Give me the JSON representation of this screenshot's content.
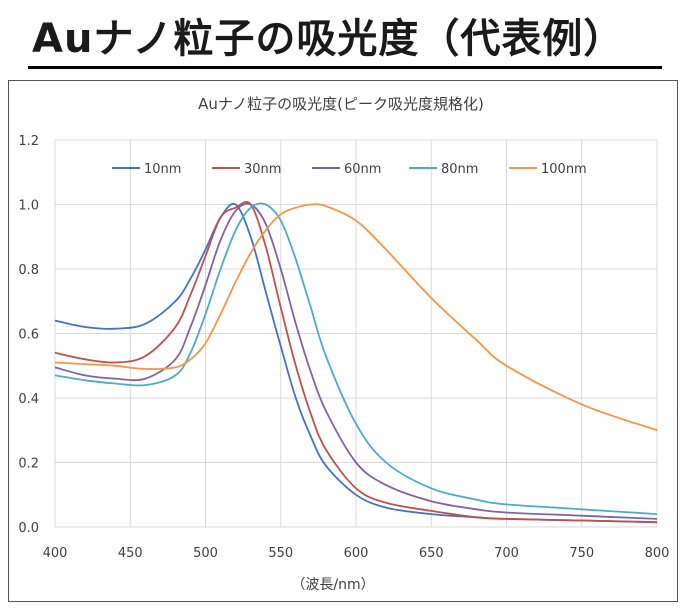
{
  "slide": {
    "title": "Auナノ粒子の吸光度（代表例）"
  },
  "chart_data": {
    "type": "line",
    "title": "Auナノ粒子の吸光度(ピーク吸光度規格化)",
    "xlabel": "（波長/nm）",
    "ylabel": "",
    "xlim": [
      400,
      800
    ],
    "ylim": [
      0,
      1.2
    ],
    "xticks": [
      "400",
      "450",
      "500",
      "550",
      "600",
      "650",
      "700",
      "750",
      "800"
    ],
    "yticks": [
      "0.0",
      "0.2",
      "0.4",
      "0.6",
      "0.8",
      "1.0",
      "1.2"
    ],
    "grid": true,
    "legend_position": "top",
    "x": [
      400,
      420,
      440,
      460,
      480,
      490,
      500,
      510,
      520,
      530,
      540,
      550,
      560,
      570,
      580,
      600,
      620,
      650,
      680,
      700,
      750,
      800
    ],
    "series": [
      {
        "name": "10nm",
        "color": "#4472c4",
        "values": [
          0.64,
          0.62,
          0.615,
          0.63,
          0.7,
          0.77,
          0.86,
          0.96,
          1.0,
          0.9,
          0.73,
          0.56,
          0.4,
          0.28,
          0.19,
          0.1,
          0.06,
          0.04,
          0.03,
          0.025,
          0.02,
          0.015
        ]
      },
      {
        "name": "30nm",
        "color": "#c0504d",
        "values": [
          0.54,
          0.52,
          0.51,
          0.53,
          0.62,
          0.72,
          0.84,
          0.96,
          0.99,
          1.0,
          0.87,
          0.68,
          0.5,
          0.35,
          0.24,
          0.12,
          0.075,
          0.05,
          0.03,
          0.025,
          0.02,
          0.015
        ]
      },
      {
        "name": "60nm",
        "color": "#8064a2",
        "values": [
          0.495,
          0.47,
          0.46,
          0.46,
          0.52,
          0.62,
          0.75,
          0.89,
          0.98,
          1.0,
          0.94,
          0.8,
          0.63,
          0.48,
          0.36,
          0.2,
          0.13,
          0.08,
          0.055,
          0.045,
          0.035,
          0.025
        ]
      },
      {
        "name": "80nm",
        "color": "#4bacc6",
        "values": [
          0.47,
          0.455,
          0.445,
          0.44,
          0.47,
          0.54,
          0.66,
          0.8,
          0.92,
          0.99,
          1.0,
          0.95,
          0.83,
          0.68,
          0.53,
          0.32,
          0.2,
          0.12,
          0.085,
          0.07,
          0.055,
          0.04
        ]
      },
      {
        "name": "100nm",
        "color": "#f79646",
        "values": [
          0.51,
          0.505,
          0.5,
          0.49,
          0.495,
          0.52,
          0.57,
          0.66,
          0.76,
          0.85,
          0.92,
          0.97,
          0.99,
          1.0,
          0.995,
          0.95,
          0.86,
          0.71,
          0.58,
          0.5,
          0.38,
          0.3
        ]
      }
    ]
  }
}
